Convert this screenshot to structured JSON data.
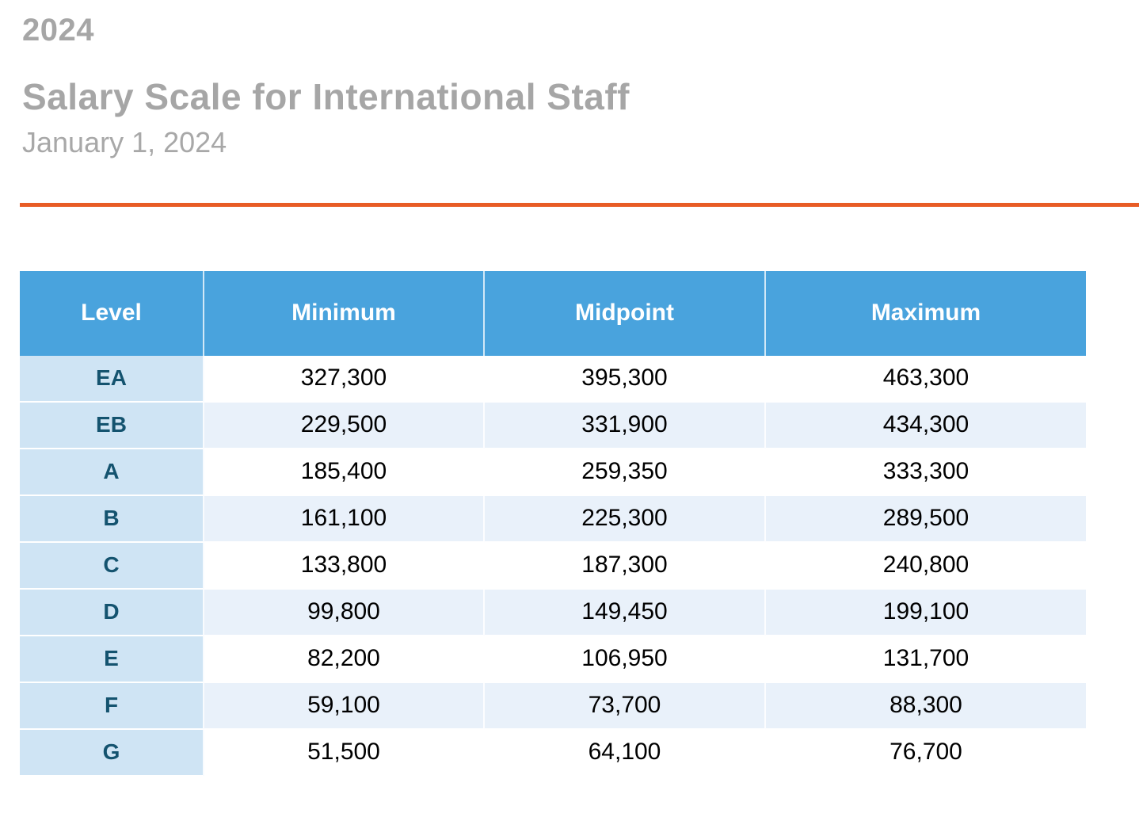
{
  "header": {
    "year": "2024",
    "title": "Salary Scale for International Staff",
    "date": "January 1, 2024"
  },
  "divider": {
    "color": "#E85C25"
  },
  "table": {
    "columns": [
      "Level",
      "Minimum",
      "Midpoint",
      "Maximum"
    ],
    "rows": [
      {
        "level": "EA",
        "minimum": "327,300",
        "midpoint": "395,300",
        "maximum": "463,300"
      },
      {
        "level": "EB",
        "minimum": "229,500",
        "midpoint": "331,900",
        "maximum": "434,300"
      },
      {
        "level": "A",
        "minimum": "185,400",
        "midpoint": "259,350",
        "maximum": "333,300"
      },
      {
        "level": "B",
        "minimum": "161,100",
        "midpoint": "225,300",
        "maximum": "289,500"
      },
      {
        "level": "C",
        "minimum": "133,800",
        "midpoint": "187,300",
        "maximum": "240,800"
      },
      {
        "level": "D",
        "minimum": "99,800",
        "midpoint": "149,450",
        "maximum": "199,100"
      },
      {
        "level": "E",
        "minimum": "82,200",
        "midpoint": "106,950",
        "maximum": "131,700"
      },
      {
        "level": "F",
        "minimum": "59,100",
        "midpoint": "73,700",
        "maximum": "88,300"
      },
      {
        "level": "G",
        "minimum": "51,500",
        "midpoint": "64,100",
        "maximum": "76,700"
      }
    ]
  },
  "colors": {
    "header_background": "#49A3DD",
    "header_text": "#FFFFFF",
    "level_column_background": "#CFE4F4",
    "level_text": "#14536F",
    "banded_row_background": "#E9F1FA",
    "title_gray": "#A6A6A6",
    "date_gray": "#A8A8A8",
    "value_text": "#000000"
  }
}
